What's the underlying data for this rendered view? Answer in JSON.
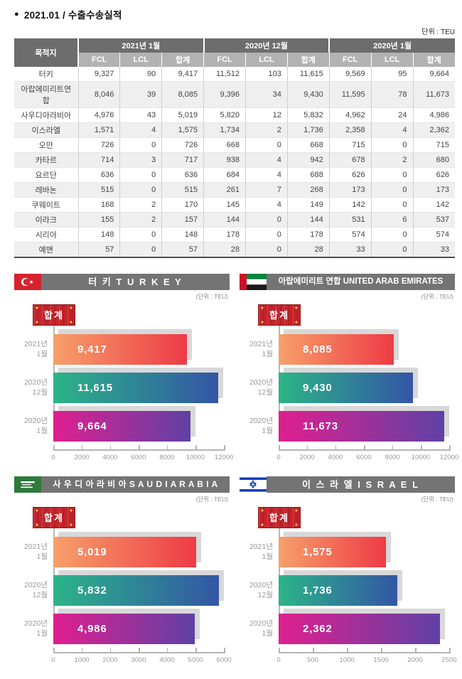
{
  "page": {
    "bullet": "●",
    "title": "2021.01 / 수출수송실적",
    "unit_label": "단위 : TEU"
  },
  "table": {
    "dest_header": "목적지",
    "month_groups": [
      "2021년 1월",
      "2020년 12월",
      "2020년 1월"
    ],
    "sub_headers": [
      "FCL",
      "LCL",
      "합계"
    ],
    "rows": [
      {
        "dest": "터키",
        "values": [
          "9,327",
          "90",
          "9,417",
          "11,512",
          "103",
          "11,615",
          "9,569",
          "95",
          "9,664"
        ]
      },
      {
        "dest": "아랍에미리트연합",
        "values": [
          "8,046",
          "39",
          "8,085",
          "9,396",
          "34",
          "9,430",
          "11,595",
          "78",
          "11,673"
        ]
      },
      {
        "dest": "사우디아라비아",
        "values": [
          "4,976",
          "43",
          "5,019",
          "5,820",
          "12",
          "5,832",
          "4,962",
          "24",
          "4,986"
        ]
      },
      {
        "dest": "이스라엘",
        "values": [
          "1,571",
          "4",
          "1,575",
          "1,734",
          "2",
          "1,736",
          "2,358",
          "4",
          "2,362"
        ]
      },
      {
        "dest": "오만",
        "values": [
          "726",
          "0",
          "726",
          "668",
          "0",
          "668",
          "715",
          "0",
          "715"
        ]
      },
      {
        "dest": "카타르",
        "values": [
          "714",
          "3",
          "717",
          "938",
          "4",
          "942",
          "678",
          "2",
          "680"
        ]
      },
      {
        "dest": "요르단",
        "values": [
          "636",
          "0",
          "636",
          "684",
          "4",
          "688",
          "626",
          "0",
          "626"
        ]
      },
      {
        "dest": "레바논",
        "values": [
          "515",
          "0",
          "515",
          "261",
          "7",
          "268",
          "173",
          "0",
          "173"
        ]
      },
      {
        "dest": "쿠웨이트",
        "values": [
          "168",
          "2",
          "170",
          "145",
          "4",
          "149",
          "142",
          "0",
          "142"
        ]
      },
      {
        "dest": "이라크",
        "values": [
          "155",
          "2",
          "157",
          "144",
          "0",
          "144",
          "531",
          "6",
          "537"
        ]
      },
      {
        "dest": "시리아",
        "values": [
          "148",
          "0",
          "148",
          "178",
          "0",
          "178",
          "574",
          "0",
          "574"
        ]
      },
      {
        "dest": "예맨",
        "values": [
          "57",
          "0",
          "57",
          "28",
          "0",
          "28",
          "33",
          "0",
          "33"
        ]
      }
    ]
  },
  "chart_data": [
    {
      "type": "bar",
      "orientation": "horizontal",
      "title": "터 키  T U R K E Y",
      "flag_icon": "turkey-flag-icon",
      "unit": "(단위 : TEU)",
      "legend": "합계",
      "categories": [
        "2021년 1월",
        "2020년 12월",
        "2020년 1월"
      ],
      "values": [
        9417,
        11615,
        9664
      ],
      "xlim": [
        0,
        12000
      ],
      "xticks": [
        0,
        2000,
        4000,
        6000,
        8000,
        10000,
        12000
      ]
    },
    {
      "type": "bar",
      "orientation": "horizontal",
      "title": "아랍에미리트 연합 UNITED ARAB EMIRATES",
      "flag_icon": "uae-flag-icon",
      "unit": "(단위 : TEU)",
      "legend": "합계",
      "categories": [
        "2021년 1월",
        "2020년 12월",
        "2020년 1월"
      ],
      "values": [
        8085,
        9430,
        11673
      ],
      "xlim": [
        0,
        12000
      ],
      "xticks": [
        0,
        2000,
        4000,
        6000,
        8000,
        10000,
        12000
      ]
    },
    {
      "type": "bar",
      "orientation": "horizontal",
      "title": "사 우 디 아 라 비 아  S A U D I  A R A B I A",
      "flag_icon": "saudi-arabia-flag-icon",
      "unit": "(단위 : TEU)",
      "legend": "합계",
      "categories": [
        "2021년 1월",
        "2020년 12월",
        "2020년 1월"
      ],
      "values": [
        5019,
        5832,
        4986
      ],
      "xlim": [
        0,
        6000
      ],
      "xticks": [
        0,
        1000,
        2000,
        3000,
        4000,
        5000,
        6000
      ]
    },
    {
      "type": "bar",
      "orientation": "horizontal",
      "title": "이 스 라 엘  I S R A E L",
      "flag_icon": "israel-flag-icon",
      "unit": "(단위 : TEU)",
      "legend": "합계",
      "categories": [
        "2021년 1월",
        "2020년 12월",
        "2020년 1월"
      ],
      "values": [
        1575,
        1736,
        2362
      ],
      "xlim": [
        0,
        2500
      ],
      "xticks": [
        0,
        500,
        1000,
        1500,
        2000,
        2500
      ]
    }
  ],
  "colors": {
    "bar_gradients": [
      [
        "#f7a06a",
        "#ee3b46"
      ],
      [
        "#2cb487",
        "#3356a5"
      ],
      [
        "#e01f8f",
        "#5f41a5"
      ]
    ],
    "bar_shadow": "#d8d8d8",
    "chart_title_bar_bg": "#747474",
    "table_header_dark": "#6d6d6d",
    "table_header_light": "#b2b2b2",
    "table_row_stripe": "#efefef",
    "legend_badge_red": "#c4242b"
  }
}
